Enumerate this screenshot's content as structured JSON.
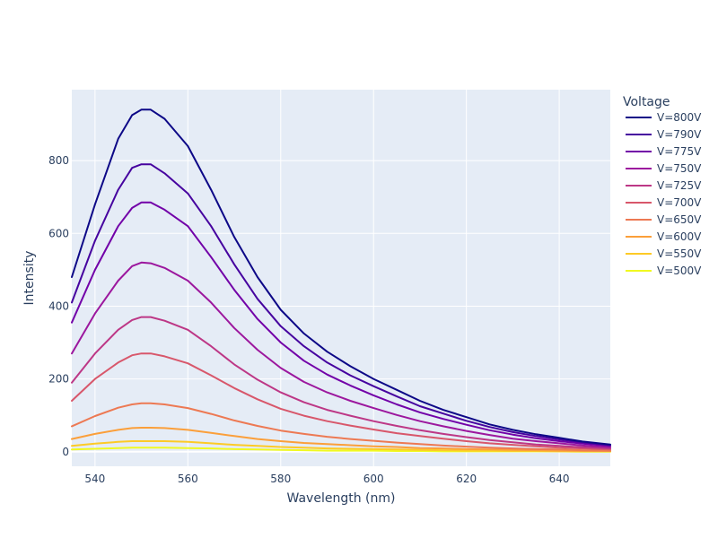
{
  "chart_data": {
    "type": "line",
    "xlabel": "Wavelength (nm)",
    "ylabel": "Intensity",
    "xlim": [
      535,
      651
    ],
    "ylim": [
      -40,
      995
    ],
    "x_ticks": [
      540,
      560,
      580,
      600,
      620,
      640
    ],
    "y_ticks": [
      0,
      200,
      400,
      600,
      800
    ],
    "grid": true,
    "background": "#E5ECF6",
    "legend": {
      "title": "Voltage",
      "placement": "right"
    },
    "series": [
      {
        "name": "V=800V",
        "color": "#0d0887",
        "x": [
          535,
          540,
          545,
          548,
          550,
          552,
          555,
          560,
          565,
          570,
          575,
          580,
          585,
          590,
          595,
          600,
          605,
          610,
          615,
          620,
          625,
          630,
          635,
          640,
          645,
          651
        ],
        "y": [
          480,
          680,
          860,
          925,
          940,
          940,
          915,
          840,
          720,
          590,
          480,
          390,
          325,
          275,
          235,
          200,
          170,
          140,
          115,
          95,
          75,
          60,
          48,
          38,
          28,
          20
        ]
      },
      {
        "name": "V=790V",
        "color": "#46039f",
        "x": [
          535,
          540,
          545,
          548,
          550,
          552,
          555,
          560,
          565,
          570,
          575,
          580,
          585,
          590,
          595,
          600,
          605,
          610,
          615,
          620,
          625,
          630,
          635,
          640,
          645,
          651
        ],
        "y": [
          410,
          580,
          720,
          780,
          790,
          790,
          765,
          710,
          620,
          515,
          420,
          345,
          290,
          245,
          210,
          180,
          152,
          125,
          105,
          85,
          68,
          54,
          43,
          34,
          26,
          18
        ]
      },
      {
        "name": "V=775V",
        "color": "#7201a8",
        "x": [
          535,
          540,
          545,
          548,
          550,
          552,
          555,
          560,
          565,
          570,
          575,
          580,
          585,
          590,
          595,
          600,
          605,
          610,
          615,
          620,
          625,
          630,
          635,
          640,
          645,
          651
        ],
        "y": [
          355,
          500,
          620,
          670,
          685,
          685,
          665,
          620,
          535,
          445,
          365,
          300,
          250,
          212,
          182,
          155,
          130,
          108,
          90,
          74,
          59,
          47,
          37,
          29,
          22,
          16
        ]
      },
      {
        "name": "V=750V",
        "color": "#9c179e",
        "x": [
          535,
          540,
          545,
          548,
          550,
          552,
          555,
          560,
          565,
          570,
          575,
          580,
          585,
          590,
          595,
          600,
          605,
          610,
          615,
          620,
          625,
          630,
          635,
          640,
          645,
          651
        ],
        "y": [
          270,
          380,
          470,
          510,
          520,
          518,
          505,
          470,
          410,
          340,
          280,
          230,
          192,
          163,
          140,
          120,
          101,
          84,
          70,
          57,
          46,
          36,
          29,
          23,
          17,
          12
        ]
      },
      {
        "name": "V=725V",
        "color": "#bd3786",
        "x": [
          535,
          540,
          545,
          548,
          550,
          552,
          555,
          560,
          565,
          570,
          575,
          580,
          585,
          590,
          595,
          600,
          605,
          610,
          615,
          620,
          625,
          630,
          635,
          640,
          645,
          651
        ],
        "y": [
          190,
          270,
          335,
          362,
          370,
          370,
          360,
          335,
          290,
          240,
          198,
          163,
          136,
          115,
          99,
          84,
          71,
          59,
          49,
          40,
          32,
          26,
          20,
          16,
          12,
          9
        ]
      },
      {
        "name": "V=700V",
        "color": "#d8576b",
        "x": [
          535,
          540,
          545,
          548,
          550,
          552,
          555,
          560,
          565,
          570,
          575,
          580,
          585,
          590,
          595,
          600,
          605,
          610,
          615,
          620,
          625,
          630,
          635,
          640,
          645,
          651
        ],
        "y": [
          140,
          200,
          245,
          265,
          270,
          270,
          262,
          243,
          210,
          175,
          144,
          118,
          99,
          84,
          72,
          61,
          51,
          43,
          36,
          29,
          23,
          19,
          15,
          11,
          9,
          6
        ]
      },
      {
        "name": "V=650V",
        "color": "#ed7953",
        "x": [
          535,
          540,
          545,
          548,
          550,
          552,
          555,
          560,
          565,
          570,
          575,
          580,
          585,
          590,
          595,
          600,
          605,
          610,
          615,
          620,
          625,
          630,
          635,
          640,
          645,
          651
        ],
        "y": [
          70,
          98,
          121,
          130,
          133,
          133,
          130,
          120,
          104,
          86,
          71,
          58,
          49,
          41,
          35,
          30,
          25,
          21,
          17,
          14,
          11,
          9,
          7,
          6,
          4,
          3
        ]
      },
      {
        "name": "V=600V",
        "color": "#fb9f3a",
        "x": [
          535,
          540,
          545,
          548,
          550,
          552,
          555,
          560,
          565,
          570,
          575,
          580,
          585,
          590,
          595,
          600,
          605,
          610,
          615,
          620,
          625,
          630,
          635,
          640,
          645,
          651
        ],
        "y": [
          35,
          49,
          60,
          65,
          66,
          66,
          65,
          60,
          52,
          43,
          35,
          29,
          24,
          21,
          18,
          15,
          13,
          10,
          9,
          7,
          6,
          5,
          4,
          3,
          2,
          2
        ]
      },
      {
        "name": "V=550V",
        "color": "#fdca26",
        "x": [
          535,
          540,
          545,
          548,
          550,
          552,
          555,
          560,
          565,
          570,
          575,
          580,
          585,
          590,
          595,
          600,
          605,
          610,
          615,
          620,
          625,
          630,
          635,
          640,
          645,
          651
        ],
        "y": [
          16,
          22,
          27,
          29,
          29,
          29,
          29,
          27,
          23,
          19,
          16,
          13,
          11,
          9,
          8,
          7,
          6,
          5,
          4,
          3,
          3,
          2,
          2,
          1,
          1,
          1
        ]
      },
      {
        "name": "V=500V",
        "color": "#f0f921",
        "x": [
          535,
          540,
          545,
          548,
          550,
          552,
          555,
          560,
          565,
          570,
          575,
          580,
          585,
          590,
          595,
          600,
          605,
          610,
          615,
          620,
          625,
          630,
          635,
          640,
          645,
          651
        ],
        "y": [
          6,
          8,
          10,
          11,
          11,
          11,
          11,
          10,
          9,
          7,
          6,
          5,
          4,
          3,
          3,
          3,
          2,
          2,
          1,
          1,
          1,
          1,
          1,
          1,
          0,
          0
        ]
      }
    ]
  }
}
